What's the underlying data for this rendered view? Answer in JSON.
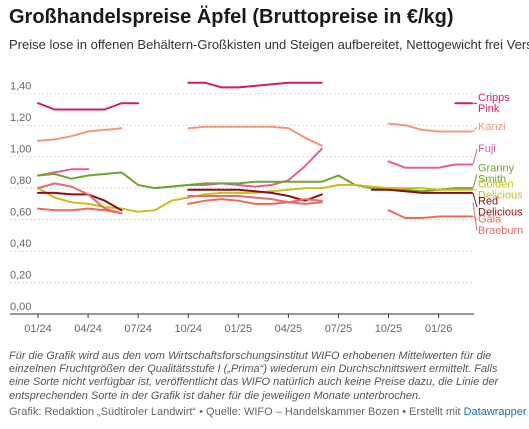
{
  "title": "Großhandelspreise Äpfel (Bruttopreise in €/kg)",
  "subtitle": "Preise lose in offenen Behältern-Großkisten und Steigen aufbereitet, Nettogewicht frei Versand",
  "footnote": "Für die Grafik wird aus den vom Wirtschaftsforschungsinstitut WIFO erhobenen Mittelwerten für die einzelnen Fruchtgrößen der Qualitätsstufe I („Prima“) wiederum ein Durchschnittswert ermittelt. Falls eine Sorte nicht verfügbar ist, veröffentlicht das WIFO natürlich auch keine Preise dazu, die Linie der entsprechenden Sorte in der Grafik ist daher für die jeweiligen Monate unterbrochen.",
  "source_text": "Grafik: Redaktion „Südtiroler Landwirt“ • Quelle: WIFO – Handelskammer Bozen • Erstellt mit ",
  "source_link": "Datawrapper",
  "chart_data": {
    "type": "line",
    "title": "Großhandelspreise Äpfel (Bruttopreise in €/kg)",
    "subtitle": "Preise lose in offenen Behältern-Großkisten und Steigen aufbereitet, Nettogewicht frei Versand",
    "x_ticks": [
      "01/24",
      "04/24",
      "07/24",
      "10/24",
      "01/25",
      "04/25",
      "07/25",
      "10/25",
      "01/26"
    ],
    "y_ticks": [
      "0,00",
      "0,20",
      "0,40",
      "0,60",
      "0,80",
      "1,00",
      "1,20",
      "1,40"
    ],
    "ylim": [
      0,
      1.5
    ],
    "grid": true,
    "legend": "right, labels at line ends",
    "series": [
      {
        "name": "Cripps Pink",
        "color": "#d81b60",
        "label_y": 1.32,
        "values": [
          1.34,
          1.3,
          1.3,
          1.3,
          1.3,
          1.34,
          1.34,
          null,
          null,
          1.47,
          1.47,
          1.44,
          1.44,
          1.45,
          1.46,
          1.47,
          1.47,
          1.47,
          null,
          null,
          null,
          null,
          null,
          null,
          null,
          1.34,
          1.34
        ]
      },
      {
        "name": "Kanzi",
        "color": "#f4967a",
        "label_y": 1.17,
        "values": [
          1.1,
          1.11,
          1.13,
          1.16,
          1.17,
          1.18,
          null,
          null,
          null,
          1.18,
          1.19,
          1.19,
          1.19,
          1.19,
          1.19,
          1.18,
          1.12,
          1.07,
          null,
          null,
          null,
          1.21,
          1.2,
          1.17,
          1.16,
          1.16,
          1.16
        ]
      },
      {
        "name": "Fuji",
        "color": "#e85a9a",
        "label_y": 1.03,
        "values": [
          0.88,
          0.9,
          0.92,
          0.92,
          null,
          null,
          null,
          0.8,
          0.81,
          0.82,
          0.82,
          0.83,
          0.82,
          0.81,
          0.82,
          0.85,
          0.94,
          1.05,
          null,
          null,
          null,
          0.97,
          0.93,
          0.93,
          0.93,
          0.95,
          0.95
        ]
      },
      {
        "name": "Granny Smith",
        "color": "#6aa630",
        "label_y": 0.87,
        "values": [
          0.88,
          0.89,
          0.86,
          0.88,
          0.89,
          0.9,
          0.82,
          0.8,
          0.81,
          0.82,
          0.83,
          0.83,
          0.83,
          0.84,
          0.84,
          0.84,
          0.84,
          0.84,
          0.88,
          0.82,
          0.8,
          0.79,
          0.79,
          0.78,
          0.79,
          0.8,
          0.8
        ]
      },
      {
        "name": "Golden Delicious",
        "color": "#c9bd1f",
        "label_y": 0.77,
        "values": [
          0.8,
          0.74,
          0.71,
          0.7,
          0.68,
          0.67,
          0.65,
          0.66,
          0.72,
          0.74,
          0.76,
          0.77,
          0.77,
          0.77,
          0.78,
          0.79,
          0.8,
          0.8,
          0.82,
          0.82,
          0.81,
          0.8,
          0.8,
          0.8,
          0.79,
          0.79,
          0.79
        ]
      },
      {
        "name": "Red Delicious",
        "color": "#8b0f14",
        "label_y": 0.66,
        "values": [
          0.77,
          0.77,
          0.76,
          0.76,
          0.72,
          0.66,
          null,
          null,
          null,
          0.79,
          0.79,
          0.79,
          0.79,
          0.78,
          0.77,
          0.75,
          0.72,
          0.76,
          null,
          null,
          0.79,
          0.79,
          0.78,
          0.77,
          0.77,
          0.77,
          0.77
        ]
      },
      {
        "name": "Gala",
        "color": "#f06a55",
        "label_y": 0.58,
        "values": [
          0.67,
          0.66,
          0.66,
          0.67,
          0.66,
          0.64,
          null,
          null,
          null,
          0.7,
          0.72,
          0.73,
          0.72,
          0.7,
          0.7,
          0.71,
          0.73,
          0.72,
          null,
          null,
          null,
          0.66,
          0.61,
          0.61,
          0.62,
          0.62,
          0.62
        ]
      },
      {
        "name": "Braeburn",
        "color": "#e56b6f",
        "label_y": 0.51,
        "values": [
          0.8,
          0.83,
          0.81,
          0.76,
          0.67,
          0.64,
          null,
          null,
          null,
          0.75,
          0.75,
          0.75,
          0.75,
          0.74,
          0.73,
          0.71,
          0.7,
          0.71,
          null,
          null,
          null,
          null,
          null,
          null,
          null,
          null,
          null
        ]
      }
    ]
  }
}
